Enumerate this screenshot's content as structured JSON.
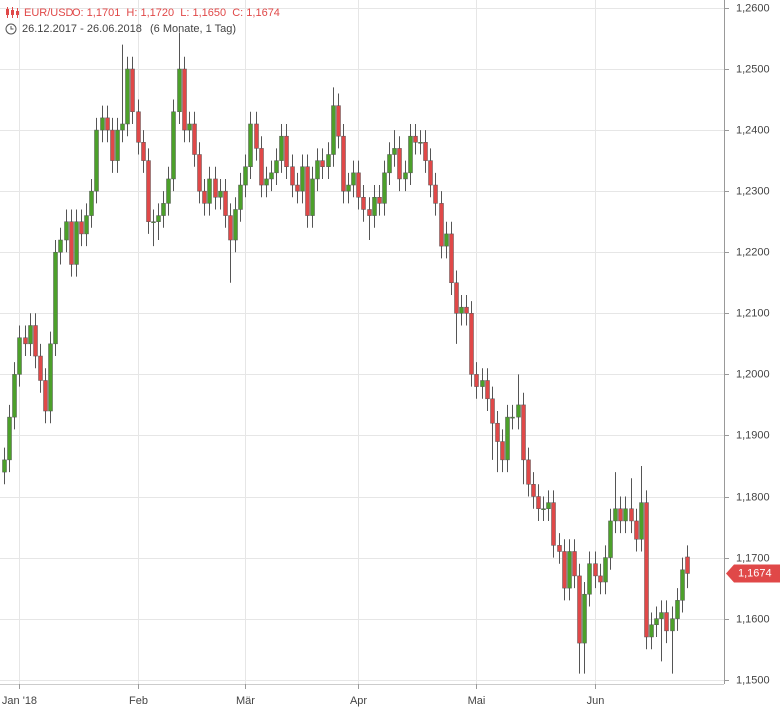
{
  "chart_data": {
    "type": "candlestick",
    "symbol": "EUR/USD",
    "ohlc_text": "O: 1,1701  H: 1,1720  L: 1,1650  C: 1,1674",
    "date_range": "26.12.2017 - 26.06.2018",
    "period": "(6 Monate, 1 Tag)",
    "up_color": "#4ca02a",
    "down_color": "#e04848",
    "grid": true,
    "ylim": [
      1.1493,
      1.2613
    ],
    "yticks": [
      {
        "value": 1.15,
        "label": "1,1500"
      },
      {
        "value": 1.16,
        "label": "1,1600"
      },
      {
        "value": 1.17,
        "label": "1,1700"
      },
      {
        "value": 1.18,
        "label": "1,1800"
      },
      {
        "value": 1.19,
        "label": "1,1900"
      },
      {
        "value": 1.2,
        "label": "1,2000"
      },
      {
        "value": 1.21,
        "label": "1,2100"
      },
      {
        "value": 1.22,
        "label": "1,2200"
      },
      {
        "value": 1.23,
        "label": "1,2300"
      },
      {
        "value": 1.24,
        "label": "1,2400"
      },
      {
        "value": 1.25,
        "label": "1,2500"
      },
      {
        "value": 1.26,
        "label": "1,2600"
      }
    ],
    "current_price": {
      "value": 1.1674,
      "label": "1,1674"
    },
    "categories": [
      null,
      null,
      null,
      "Jan '18",
      null,
      null,
      null,
      null,
      null,
      null,
      null,
      null,
      null,
      null,
      null,
      null,
      null,
      null,
      null,
      null,
      null,
      null,
      null,
      null,
      null,
      null,
      "Feb",
      null,
      null,
      null,
      null,
      null,
      null,
      null,
      null,
      null,
      null,
      null,
      null,
      null,
      null,
      null,
      null,
      null,
      null,
      null,
      null,
      "Mär",
      null,
      null,
      null,
      null,
      null,
      null,
      null,
      null,
      null,
      null,
      null,
      null,
      null,
      null,
      null,
      null,
      null,
      null,
      null,
      null,
      null,
      "Apr",
      null,
      null,
      null,
      null,
      null,
      null,
      null,
      null,
      null,
      null,
      null,
      null,
      null,
      null,
      null,
      null,
      null,
      null,
      null,
      null,
      null,
      null,
      "Mai",
      null,
      null,
      null,
      null,
      null,
      null,
      null,
      null,
      null,
      null,
      null,
      null,
      null,
      null,
      null,
      null,
      null,
      null,
      null,
      null,
      null,
      null,
      "Jun",
      null,
      null,
      null,
      null,
      null,
      null,
      null,
      null,
      null,
      null,
      null,
      null,
      null,
      null,
      null,
      null,
      null,
      null
    ],
    "open": [
      1.184,
      1.186,
      1.193,
      1.2,
      1.206,
      1.205,
      1.208,
      1.203,
      1.199,
      1.194,
      1.205,
      1.22,
      1.222,
      1.225,
      1.218,
      1.225,
      1.223,
      1.226,
      1.23,
      1.24,
      1.242,
      1.24,
      1.235,
      1.24,
      1.241,
      1.25,
      1.243,
      1.238,
      1.235,
      1.225,
      1.225,
      1.226,
      1.228,
      1.232,
      1.243,
      1.25,
      1.24,
      1.241,
      1.236,
      1.23,
      1.228,
      1.232,
      1.229,
      1.23,
      1.226,
      1.222,
      1.227,
      1.231,
      1.234,
      1.241,
      1.237,
      1.231,
      1.232,
      1.233,
      1.235,
      1.239,
      1.234,
      1.231,
      1.23,
      1.234,
      1.226,
      1.232,
      1.235,
      1.234,
      1.236,
      1.244,
      1.239,
      1.23,
      1.231,
      1.233,
      1.229,
      1.227,
      1.226,
      1.229,
      1.228,
      1.233,
      1.236,
      1.237,
      1.232,
      1.233,
      1.239,
      1.238,
      1.238,
      1.235,
      1.231,
      1.228,
      1.221,
      1.223,
      1.215,
      1.21,
      1.211,
      1.21,
      1.2,
      1.198,
      1.199,
      1.196,
      1.192,
      1.189,
      1.186,
      1.193,
      1.193,
      1.195,
      1.186,
      1.182,
      1.18,
      1.178,
      1.178,
      1.179,
      1.172,
      1.171,
      1.165,
      1.171,
      1.167,
      1.156,
      1.164,
      1.169,
      1.167,
      1.166,
      1.17,
      1.176,
      1.178,
      1.176,
      1.178,
      1.176,
      1.173,
      1.179,
      1.157,
      1.159,
      1.16,
      1.161,
      1.158,
      1.16,
      1.163,
      1.1701
    ],
    "high": [
      1.188,
      1.195,
      1.202,
      1.208,
      1.208,
      1.21,
      1.21,
      1.205,
      1.201,
      1.207,
      1.222,
      1.224,
      1.227,
      1.227,
      1.227,
      1.227,
      1.228,
      1.232,
      1.242,
      1.244,
      1.244,
      1.242,
      1.242,
      1.254,
      1.252,
      1.252,
      1.245,
      1.24,
      1.237,
      1.227,
      1.228,
      1.23,
      1.234,
      1.245,
      1.256,
      1.252,
      1.243,
      1.243,
      1.238,
      1.232,
      1.234,
      1.234,
      1.232,
      1.232,
      1.228,
      1.229,
      1.233,
      1.236,
      1.243,
      1.243,
      1.239,
      1.234,
      1.235,
      1.237,
      1.241,
      1.241,
      1.236,
      1.233,
      1.236,
      1.236,
      1.234,
      1.237,
      1.237,
      1.238,
      1.247,
      1.246,
      1.241,
      1.233,
      1.235,
      1.235,
      1.231,
      1.229,
      1.231,
      1.231,
      1.235,
      1.238,
      1.24,
      1.239,
      1.235,
      1.241,
      1.241,
      1.24,
      1.24,
      1.237,
      1.233,
      1.23,
      1.225,
      1.225,
      1.217,
      1.213,
      1.213,
      1.212,
      1.202,
      1.201,
      1.201,
      1.198,
      1.194,
      1.191,
      1.195,
      1.195,
      1.2,
      1.197,
      1.188,
      1.184,
      1.182,
      1.18,
      1.181,
      1.181,
      1.174,
      1.173,
      1.173,
      1.173,
      1.169,
      1.166,
      1.171,
      1.171,
      1.169,
      1.172,
      1.178,
      1.184,
      1.18,
      1.18,
      1.183,
      1.178,
      1.185,
      1.181,
      1.161,
      1.162,
      1.163,
      1.163,
      1.162,
      1.165,
      1.17,
      1.172
    ],
    "low": [
      1.182,
      1.184,
      1.191,
      1.198,
      1.203,
      1.203,
      1.201,
      1.197,
      1.192,
      1.192,
      1.203,
      1.218,
      1.22,
      1.216,
      1.216,
      1.221,
      1.221,
      1.224,
      1.228,
      1.238,
      1.238,
      1.233,
      1.233,
      1.238,
      1.239,
      1.241,
      1.236,
      1.233,
      1.223,
      1.221,
      1.222,
      1.224,
      1.226,
      1.23,
      1.241,
      1.238,
      1.238,
      1.234,
      1.228,
      1.226,
      1.226,
      1.227,
      1.227,
      1.224,
      1.215,
      1.22,
      1.225,
      1.229,
      1.232,
      1.235,
      1.229,
      1.229,
      1.23,
      1.231,
      1.233,
      1.232,
      1.229,
      1.228,
      1.228,
      1.224,
      1.224,
      1.23,
      1.232,
      1.232,
      1.234,
      1.237,
      1.228,
      1.228,
      1.229,
      1.227,
      1.225,
      1.222,
      1.224,
      1.226,
      1.226,
      1.231,
      1.234,
      1.23,
      1.23,
      1.231,
      1.236,
      1.236,
      1.233,
      1.229,
      1.226,
      1.219,
      1.219,
      1.213,
      1.205,
      1.208,
      1.208,
      1.198,
      1.196,
      1.196,
      1.194,
      1.186,
      1.184,
      1.184,
      1.184,
      1.191,
      1.191,
      1.182,
      1.18,
      1.178,
      1.176,
      1.176,
      1.176,
      1.17,
      1.169,
      1.163,
      1.163,
      1.165,
      1.151,
      1.151,
      1.162,
      1.165,
      1.164,
      1.164,
      1.168,
      1.174,
      1.174,
      1.174,
      1.174,
      1.171,
      1.171,
      1.155,
      1.155,
      1.157,
      1.153,
      1.156,
      1.151,
      1.158,
      1.161,
      1.165
    ],
    "close": [
      1.186,
      1.193,
      1.2,
      1.206,
      1.205,
      1.208,
      1.203,
      1.199,
      1.194,
      1.205,
      1.22,
      1.222,
      1.225,
      1.218,
      1.225,
      1.223,
      1.226,
      1.23,
      1.24,
      1.242,
      1.24,
      1.235,
      1.24,
      1.241,
      1.25,
      1.243,
      1.238,
      1.235,
      1.225,
      1.225,
      1.226,
      1.228,
      1.232,
      1.243,
      1.25,
      1.24,
      1.241,
      1.236,
      1.23,
      1.228,
      1.232,
      1.229,
      1.23,
      1.226,
      1.222,
      1.227,
      1.231,
      1.234,
      1.241,
      1.237,
      1.231,
      1.232,
      1.233,
      1.235,
      1.239,
      1.234,
      1.231,
      1.23,
      1.234,
      1.226,
      1.232,
      1.235,
      1.234,
      1.236,
      1.244,
      1.239,
      1.23,
      1.231,
      1.233,
      1.229,
      1.227,
      1.226,
      1.229,
      1.228,
      1.233,
      1.236,
      1.237,
      1.232,
      1.233,
      1.239,
      1.238,
      1.238,
      1.235,
      1.231,
      1.228,
      1.221,
      1.223,
      1.215,
      1.21,
      1.211,
      1.21,
      1.2,
      1.198,
      1.199,
      1.196,
      1.192,
      1.189,
      1.186,
      1.193,
      1.193,
      1.195,
      1.186,
      1.182,
      1.18,
      1.178,
      1.178,
      1.179,
      1.172,
      1.171,
      1.165,
      1.171,
      1.167,
      1.156,
      1.164,
      1.169,
      1.167,
      1.166,
      1.17,
      1.176,
      1.178,
      1.176,
      1.178,
      1.176,
      1.173,
      1.179,
      1.157,
      1.159,
      1.16,
      1.161,
      1.158,
      1.16,
      1.163,
      1.168,
      1.1674
    ]
  }
}
